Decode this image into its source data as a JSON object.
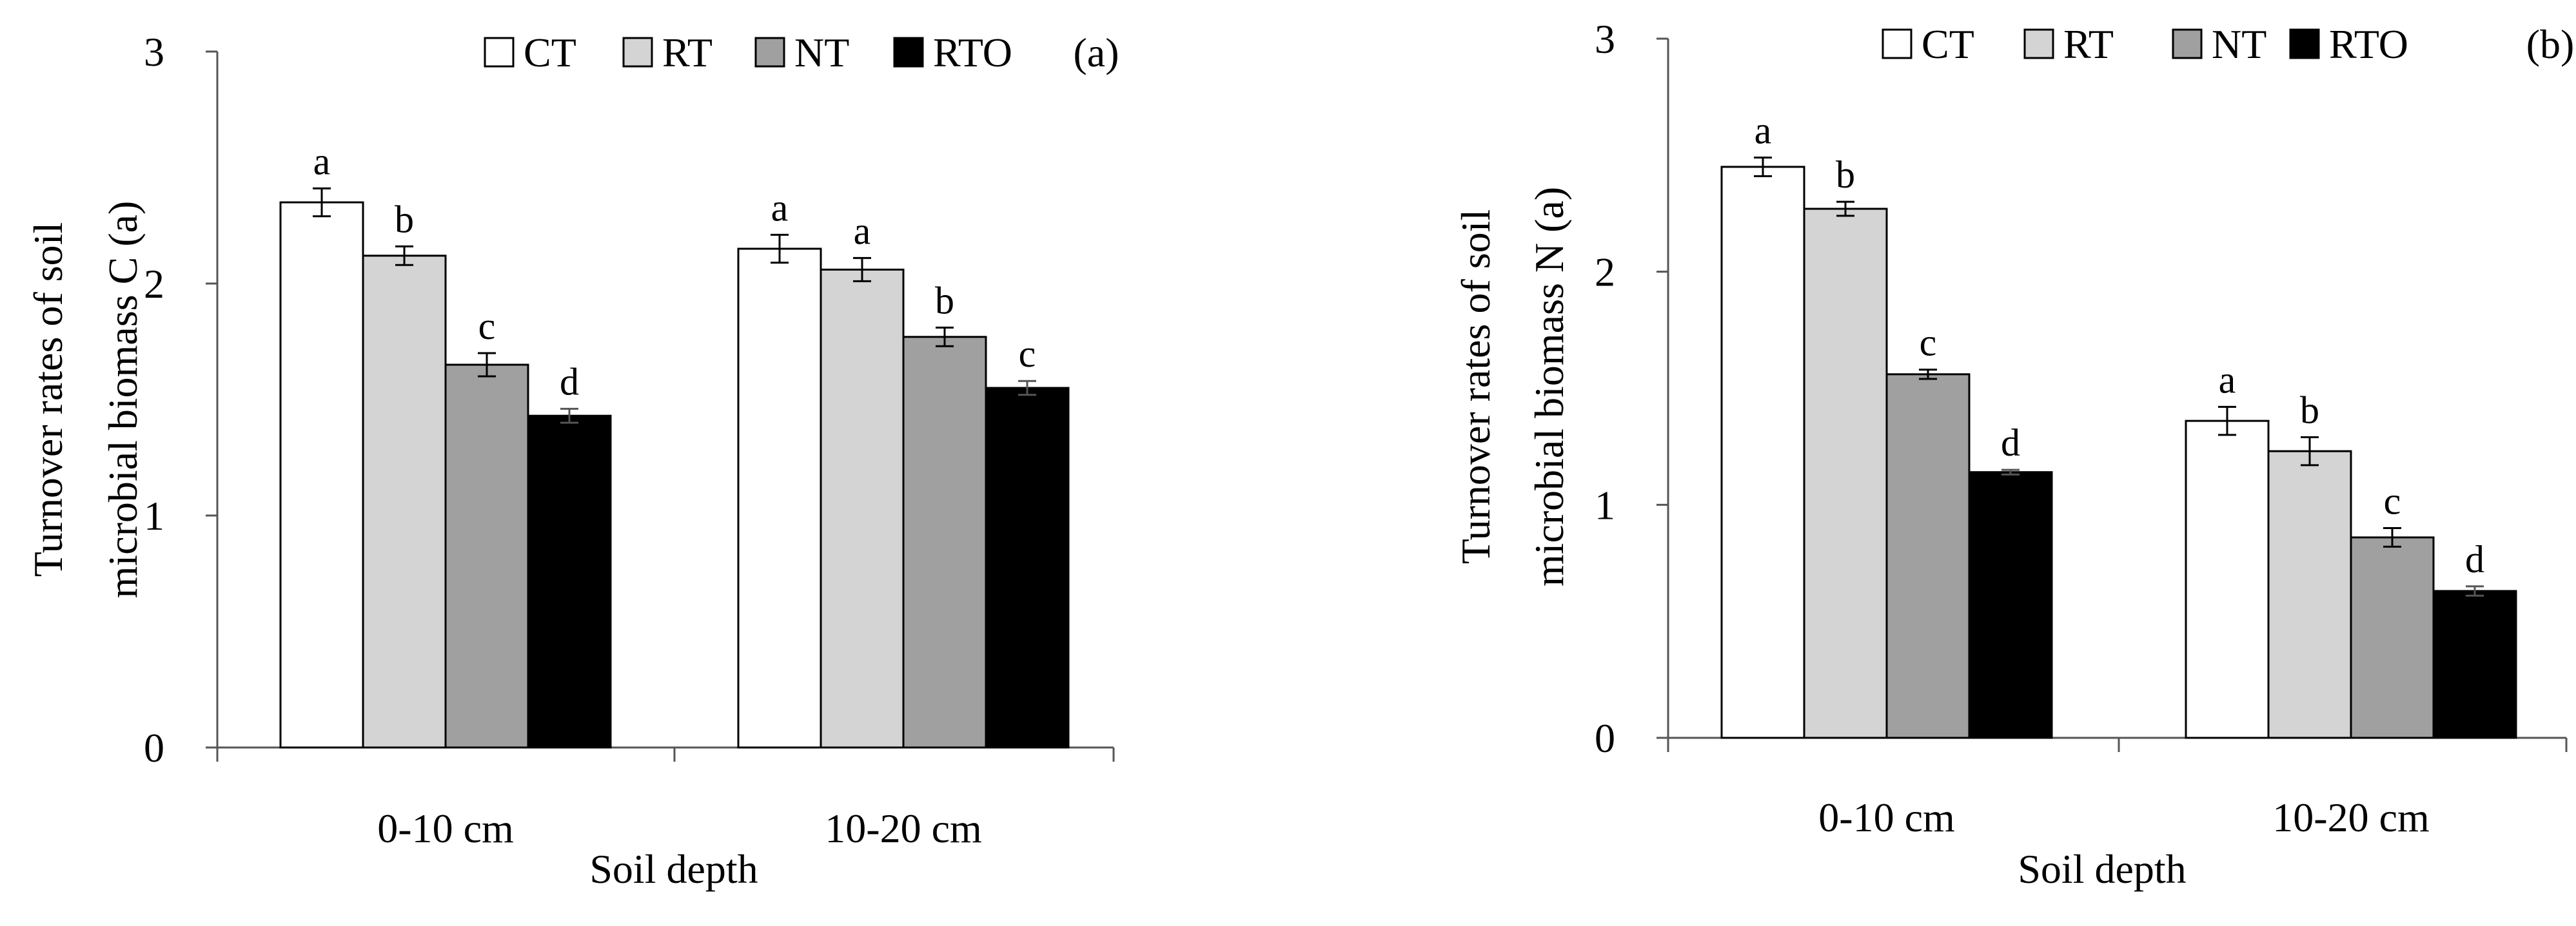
{
  "chart_data": [
    {
      "type": "bar",
      "panel_label": "(a)",
      "categories": [
        "0-10 cm",
        "10-20 cm"
      ],
      "xlabel": "Soil depth",
      "ylabel_lines": [
        "Turnover rates of soil",
        "microbial biomass C (a)"
      ],
      "ylim": [
        0,
        3
      ],
      "yticks": [
        "0",
        "1",
        "2",
        "3"
      ],
      "grid": false,
      "legend_position": "top",
      "series": [
        {
          "name": "CT",
          "color": "#ffffff",
          "values": [
            2.35,
            2.15
          ],
          "errors": [
            0.06,
            0.06
          ],
          "letters": [
            "a",
            "a"
          ]
        },
        {
          "name": "RT",
          "color": "#d4d4d4",
          "values": [
            2.12,
            2.06
          ],
          "errors": [
            0.04,
            0.05
          ],
          "letters": [
            "b",
            "a"
          ]
        },
        {
          "name": "NT",
          "color": "#a0a0a0",
          "values": [
            1.65,
            1.77
          ],
          "errors": [
            0.05,
            0.04
          ],
          "letters": [
            "c",
            "b"
          ]
        },
        {
          "name": "RTO",
          "color": "#000000",
          "values": [
            1.43,
            1.55
          ],
          "errors": [
            0.03,
            0.03
          ],
          "letters": [
            "d",
            "c"
          ]
        }
      ]
    },
    {
      "type": "bar",
      "panel_label": "(b)",
      "categories": [
        "0-10 cm",
        "10-20 cm"
      ],
      "xlabel": "Soil depth",
      "ylabel_lines": [
        "Turnover rates of soil",
        "microbial biomass N (a)"
      ],
      "ylim": [
        0,
        3
      ],
      "yticks": [
        "0",
        "1",
        "2",
        "3"
      ],
      "grid": false,
      "legend_position": "top",
      "series": [
        {
          "name": "CT",
          "color": "#ffffff",
          "values": [
            2.45,
            1.36
          ],
          "errors": [
            0.04,
            0.06
          ],
          "letters": [
            "a",
            "a"
          ]
        },
        {
          "name": "RT",
          "color": "#d4d4d4",
          "values": [
            2.27,
            1.23
          ],
          "errors": [
            0.03,
            0.06
          ],
          "letters": [
            "b",
            "b"
          ]
        },
        {
          "name": "NT",
          "color": "#a0a0a0",
          "values": [
            1.56,
            0.86
          ],
          "errors": [
            0.02,
            0.04
          ],
          "letters": [
            "c",
            "c"
          ]
        },
        {
          "name": "RTO",
          "color": "#000000",
          "values": [
            1.14,
            0.63
          ],
          "errors": [
            0.01,
            0.02
          ],
          "letters": [
            "d",
            "d"
          ]
        }
      ]
    }
  ]
}
